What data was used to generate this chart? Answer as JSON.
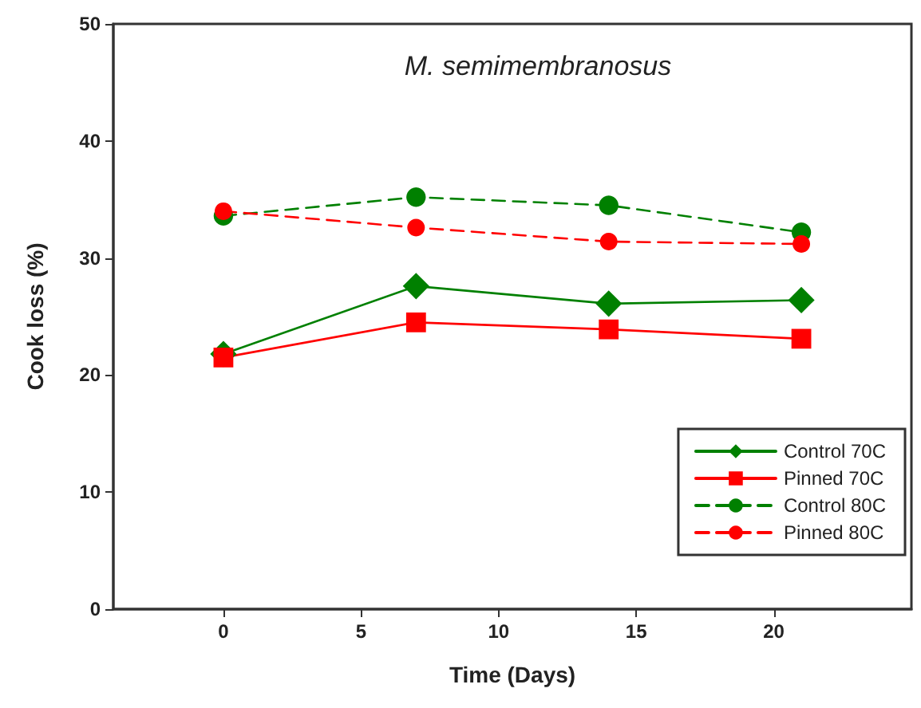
{
  "chart_data": {
    "type": "line",
    "title": "M. semimembranosus",
    "xlabel": "Time (Days)",
    "ylabel": "Cook loss (%)",
    "x": [
      0,
      7,
      14,
      21
    ],
    "series": [
      {
        "name": "Control 70C",
        "color": "#008000",
        "marker": "diamond",
        "line_style": "solid",
        "values": [
          21.8,
          27.6,
          26.1,
          26.4
        ]
      },
      {
        "name": "Pinned 70C",
        "color": "#ff0000",
        "marker": "square",
        "line_style": "solid",
        "values": [
          21.5,
          24.5,
          23.9,
          23.1
        ]
      },
      {
        "name": "Control 80C",
        "color": "#008000",
        "marker": "circle",
        "line_style": "dashed",
        "values": [
          33.6,
          35.2,
          34.5,
          32.2
        ]
      },
      {
        "name": "Pinned 80C",
        "color": "#ff0000",
        "marker": "circle",
        "line_style": "dashed",
        "values": [
          34.0,
          32.6,
          31.4,
          31.2
        ]
      }
    ],
    "xlim": [
      -4,
      25
    ],
    "xticks": [
      0,
      5,
      10,
      15,
      20
    ],
    "ylim": [
      0,
      50
    ],
    "yticks": [
      0,
      10,
      20,
      30,
      40,
      50
    ],
    "grid": false,
    "legend": "bottom right"
  }
}
